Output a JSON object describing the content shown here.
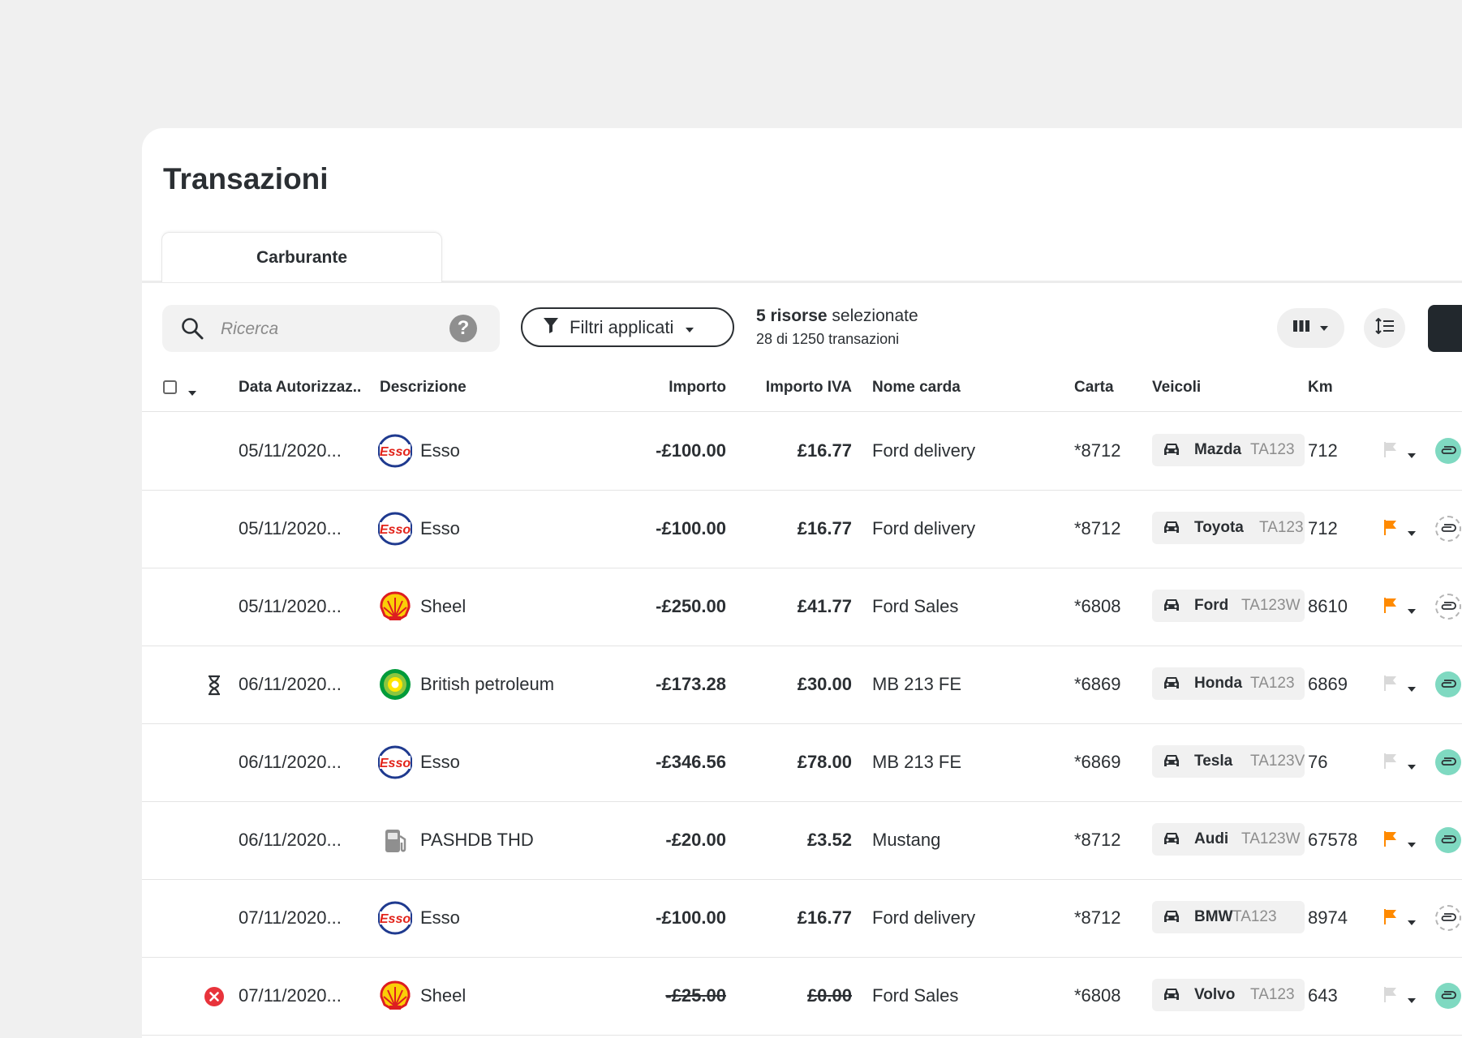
{
  "page": {
    "title": "Transazioni"
  },
  "tabs": [
    {
      "label": "Carburante"
    }
  ],
  "search": {
    "placeholder": "Ricerca",
    "value": ""
  },
  "filter_button": {
    "label": "Filtri applicati"
  },
  "selection": {
    "count": "5 risorse",
    "suffix": " selezionate",
    "summary": "28 di 1250 transazioni"
  },
  "columns": {
    "date": "Data Autorizzaz..",
    "description": "Descrizione",
    "amount": "Importo",
    "vat": "Importo IVA",
    "card_name": "Nome carda",
    "card": "Carta",
    "vehicles": "Veicoli",
    "km": "Km"
  },
  "colors": {
    "flag_active": "#ff8a00",
    "flag_inactive": "#d9d9d9",
    "attachment_active": "#7fd9c1",
    "primary": "#22282d"
  },
  "rows": [
    {
      "status": "",
      "date": "05/11/2020...",
      "brand": "esso",
      "description": "Esso",
      "amount": "-£100.00",
      "vat": "£16.77",
      "card_name": "Ford delivery",
      "card": "*8712",
      "vehicle": "Mazda",
      "plate": "TA123",
      "km": "712",
      "flag": "inactive",
      "attachment": "active"
    },
    {
      "status": "",
      "date": "05/11/2020...",
      "brand": "esso",
      "description": "Esso",
      "amount": "-£100.00",
      "vat": "£16.77",
      "card_name": "Ford delivery",
      "card": "*8712",
      "vehicle": "Toyota",
      "plate": "TA123",
      "km": "712",
      "flag": "active",
      "attachment": "empty"
    },
    {
      "status": "",
      "date": "05/11/2020...",
      "brand": "shell",
      "description": "Sheel",
      "amount": "-£250.00",
      "vat": "£41.77",
      "card_name": "Ford Sales",
      "card": "*6808",
      "vehicle": "Ford",
      "plate": "TA123W",
      "km": "8610",
      "flag": "active",
      "attachment": "empty"
    },
    {
      "status": "pending",
      "date": "06/11/2020...",
      "brand": "bp",
      "description": "British petroleum",
      "amount": "-£173.28",
      "vat": "£30.00",
      "card_name": "MB 213 FE",
      "card": "*6869",
      "vehicle": "Honda",
      "plate": "TA123",
      "km": "6869",
      "flag": "inactive",
      "attachment": "active"
    },
    {
      "status": "",
      "date": "06/11/2020...",
      "brand": "esso",
      "description": "Esso",
      "amount": "-£346.56",
      "vat": "£78.00",
      "card_name": "MB 213 FE",
      "card": "*6869",
      "vehicle": "Tesla",
      "plate": "TA123V",
      "km": "76",
      "flag": "inactive",
      "attachment": "active"
    },
    {
      "status": "",
      "date": "06/11/2020...",
      "brand": "fuel",
      "description": "PASHDB THD",
      "amount": "-£20.00",
      "vat": "£3.52",
      "card_name": "Mustang",
      "card": "*8712",
      "vehicle": "Audi",
      "plate": "TA123W",
      "km": "67578",
      "flag": "active",
      "attachment": "active"
    },
    {
      "status": "",
      "date": "07/11/2020...",
      "brand": "esso",
      "description": "Esso",
      "amount": "-£100.00",
      "vat": "£16.77",
      "card_name": "Ford delivery",
      "card": "*8712",
      "vehicle": "BMW",
      "plate": "TA123",
      "km": "8974",
      "flag": "active",
      "attachment": "empty"
    },
    {
      "status": "error",
      "date": "07/11/2020...",
      "brand": "shell",
      "description": "Sheel",
      "amount": "-£25.00",
      "vat": "£0.00",
      "card_name": "Ford Sales",
      "card": "*6808",
      "vehicle": "Volvo",
      "plate": "TA123",
      "km": "643",
      "flag": "inactive",
      "attachment": "active",
      "voided": true
    }
  ]
}
